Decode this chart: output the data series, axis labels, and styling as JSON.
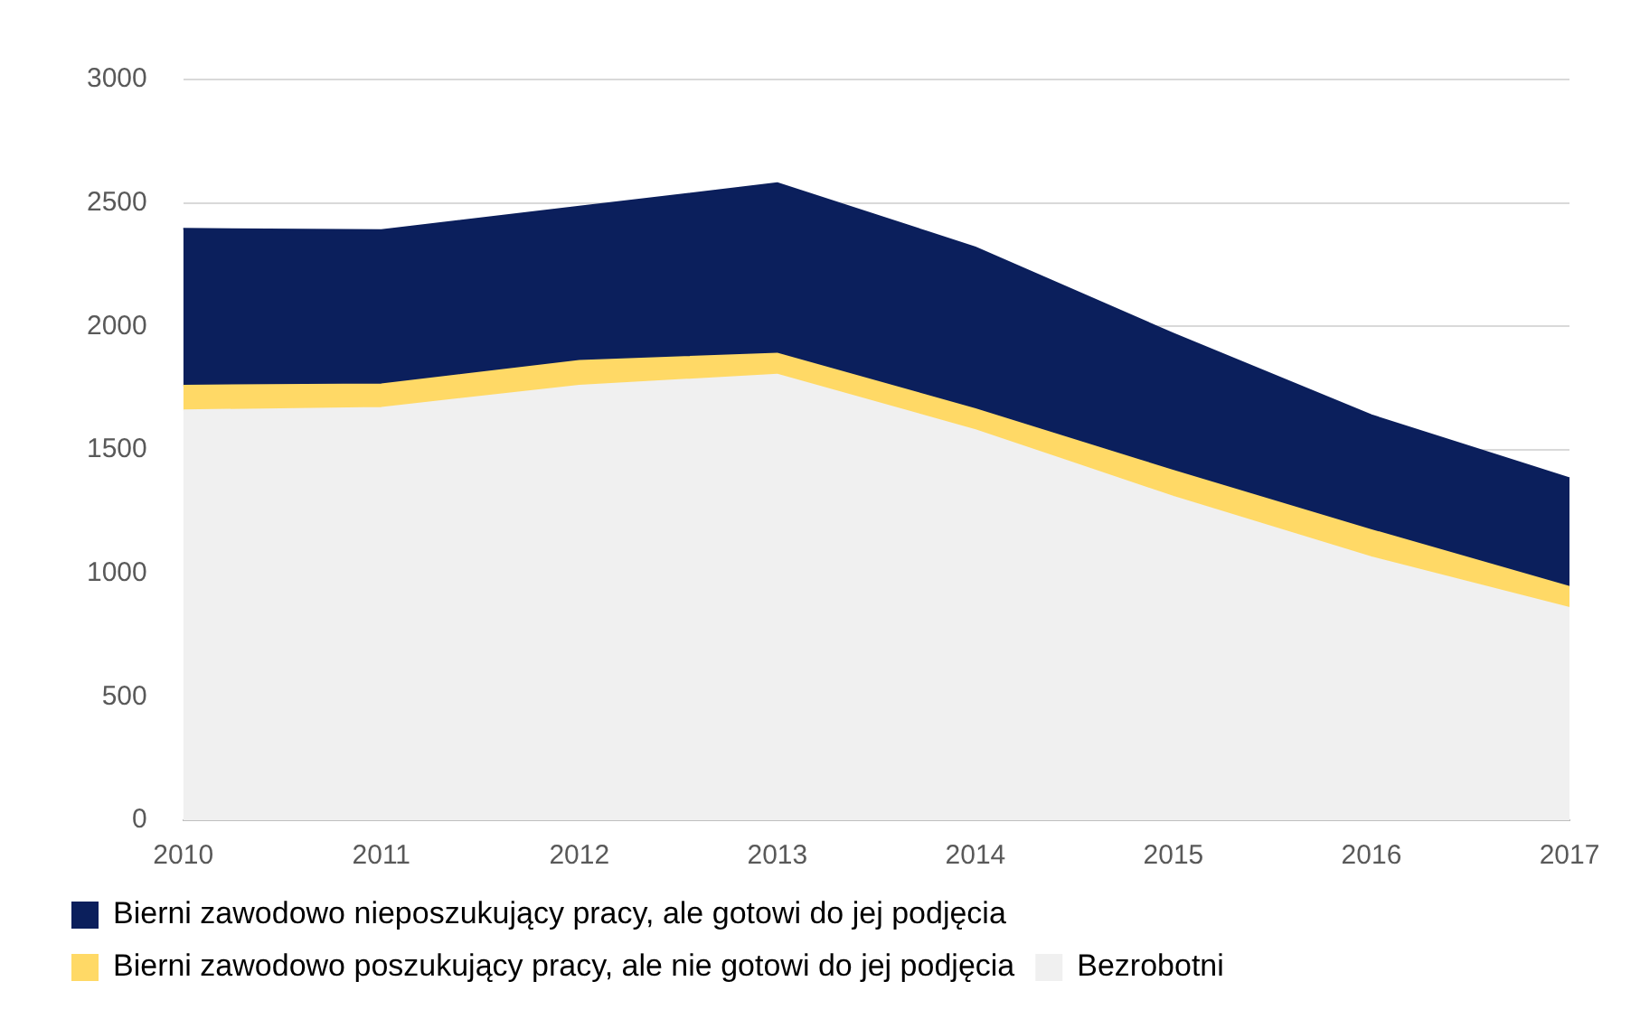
{
  "chart_data": {
    "type": "area",
    "stacked": true,
    "categories": [
      "2010",
      "2011",
      "2012",
      "2013",
      "2014",
      "2015",
      "2016",
      "2017"
    ],
    "series": [
      {
        "name": "Bezrobotni",
        "color": "#f0f0f0",
        "values": [
          1660,
          1670,
          1760,
          1805,
          1580,
          1310,
          1065,
          860
        ]
      },
      {
        "name": "Bierni zawodowo poszukujący pracy, ale nie gotowi do jej podjęcia",
        "color": "#ffd966",
        "values": [
          100,
          95,
          100,
          85,
          85,
          105,
          110,
          85
        ]
      },
      {
        "name": "Bierni zawodowo nieposzukujący pracy, ale gotowi do jej podjęcia",
        "color": "#0b1f5c",
        "values": [
          635,
          625,
          625,
          690,
          655,
          555,
          465,
          440
        ]
      }
    ],
    "ylim": [
      0,
      3000
    ],
    "yticks": [
      0,
      500,
      1000,
      1500,
      2000,
      2500,
      3000
    ],
    "grid": "y",
    "legend": "bottom"
  }
}
